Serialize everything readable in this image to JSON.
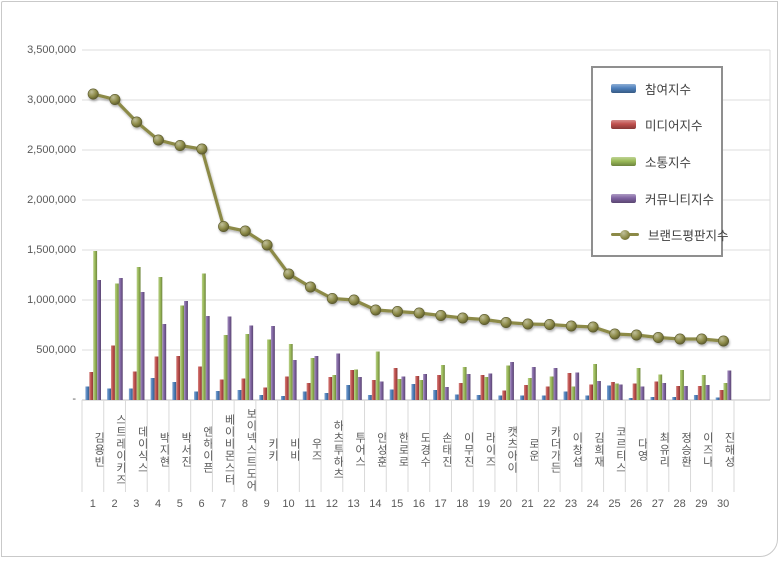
{
  "chart_data": {
    "type": "bar+line",
    "title": "",
    "xlabel": "",
    "ylabel": "",
    "ylim": [
      0,
      3500000
    ],
    "ytick_interval": 500000,
    "ytick_values": [
      3500000,
      3000000,
      2500000,
      2000000,
      1500000,
      1000000,
      500000
    ],
    "ytick_labels": [
      "3,500,000",
      "3,000,000",
      "2,500,000",
      "2,000,000",
      "1,500,000",
      "1,000,000",
      "500,000"
    ],
    "zero_label": "-",
    "grid": true,
    "legend_position": "right-top",
    "grid_color": "#dcdcdc",
    "axis_line_color": "#c0c0c0",
    "tick_line_color": "#d9d9d9",
    "text_color": "#595959",
    "categories": [
      "김용빈",
      "스트레이키즈",
      "데이식스",
      "박지현",
      "박서진",
      "엔하이픈",
      "베이비몬스터",
      "보이넥스트도어",
      "키키",
      "비비",
      "우즈",
      "하츠투하츠",
      "투어스",
      "안성훈",
      "한로로",
      "도경수",
      "손태진",
      "이무진",
      "라이즈",
      "캣츠아이",
      "로운",
      "카더가든",
      "이창섭",
      "김희재",
      "코르티스",
      "다영",
      "최유리",
      "정승환",
      "이즈나",
      "진해성"
    ],
    "ranks": [
      "1",
      "2",
      "3",
      "4",
      "5",
      "6",
      "7",
      "8",
      "9",
      "10",
      "11",
      "12",
      "13",
      "14",
      "15",
      "16",
      "17",
      "18",
      "19",
      "20",
      "21",
      "22",
      "23",
      "24",
      "25",
      "26",
      "27",
      "28",
      "29",
      "30"
    ],
    "series": [
      {
        "name": "참여지수",
        "type": "bar",
        "color": "#4F81BD",
        "values": [
          135000,
          115000,
          115000,
          220000,
          180000,
          85000,
          90000,
          100000,
          50000,
          40000,
          85000,
          70000,
          150000,
          50000,
          105000,
          160000,
          100000,
          55000,
          50000,
          45000,
          45000,
          45000,
          85000,
          45000,
          145000,
          20000,
          30000,
          30000,
          50000,
          25000
        ]
      },
      {
        "name": "미디어지수",
        "type": "bar",
        "color": "#C0504D",
        "values": [
          280000,
          545000,
          285000,
          435000,
          440000,
          335000,
          205000,
          215000,
          125000,
          235000,
          170000,
          230000,
          300000,
          200000,
          320000,
          240000,
          250000,
          170000,
          250000,
          95000,
          150000,
          135000,
          270000,
          155000,
          180000,
          165000,
          185000,
          140000,
          140000,
          100000
        ]
      },
      {
        "name": "소통지수",
        "type": "bar",
        "color": "#9BBB59",
        "values": [
          1490000,
          1165000,
          1330000,
          1230000,
          945000,
          1265000,
          650000,
          660000,
          605000,
          560000,
          420000,
          250000,
          305000,
          485000,
          210000,
          200000,
          350000,
          330000,
          230000,
          345000,
          220000,
          235000,
          135000,
          360000,
          165000,
          320000,
          255000,
          300000,
          250000,
          170000
        ]
      },
      {
        "name": "커뮤니티지수",
        "type": "bar",
        "color": "#8064A2",
        "values": [
          1200000,
          1220000,
          1080000,
          760000,
          990000,
          840000,
          835000,
          745000,
          740000,
          400000,
          440000,
          465000,
          230000,
          185000,
          235000,
          260000,
          130000,
          260000,
          265000,
          380000,
          330000,
          320000,
          275000,
          190000,
          155000,
          135000,
          170000,
          140000,
          150000,
          295000
        ]
      },
      {
        "name": "브랜드평판지수",
        "type": "line",
        "color": "#8C8A47",
        "values": [
          3060000,
          3005000,
          2780000,
          2600000,
          2545000,
          2510000,
          1735000,
          1690000,
          1550000,
          1260000,
          1130000,
          1015000,
          1000000,
          900000,
          885000,
          870000,
          845000,
          820000,
          805000,
          775000,
          760000,
          755000,
          740000,
          730000,
          660000,
          650000,
          625000,
          610000,
          610000,
          590000
        ]
      }
    ]
  }
}
